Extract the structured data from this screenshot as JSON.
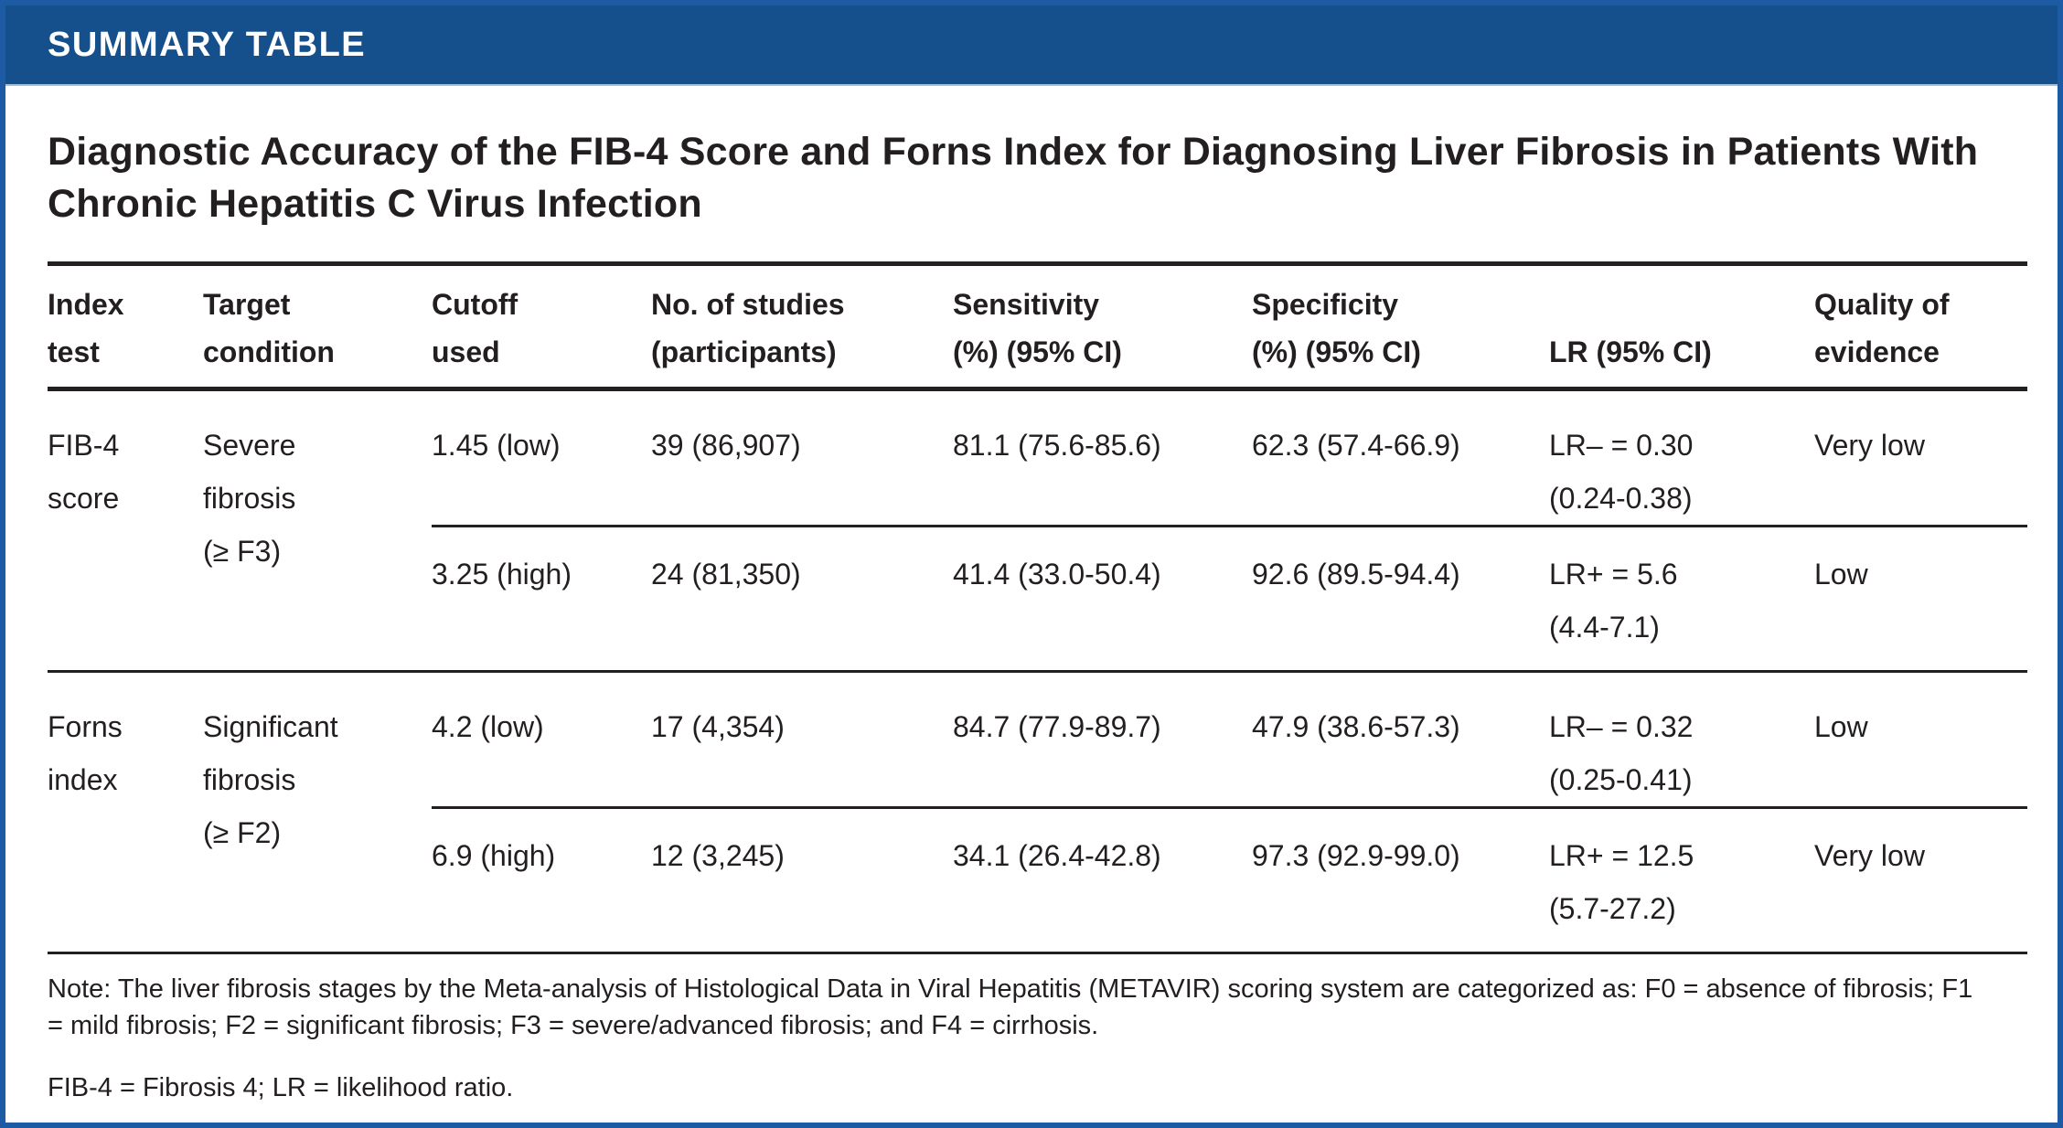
{
  "banner": {
    "label": "SUMMARY TABLE"
  },
  "title": "Diagnostic Accuracy of the FIB-4 Score and Forns Index for Diagnosing Liver Fibrosis in Patients With Chronic Hepatitis C Virus Infection",
  "colors": {
    "banner_blue": "#15508c",
    "border_blue": "#1d5ba4",
    "rule_black": "#231f20"
  },
  "table": {
    "headers": [
      "Index\ntest",
      "Target\ncondition",
      "Cutoff\nused",
      "No. of studies\n(participants)",
      "Sensitivity\n(%) (95% CI)",
      "Specificity\n(%) (95% CI)",
      "LR (95% CI)",
      "Quality of\nevidence"
    ],
    "groups": [
      {
        "index_test": "FIB-4\nscore",
        "target_condition": "Severe\nfibrosis\n(≥ F3)",
        "rows": [
          {
            "cutoff": "1.45 (low)",
            "studies": "39 (86,907)",
            "sensitivity": "81.1 (75.6-85.6)",
            "specificity": "62.3 (57.4-66.9)",
            "lr": "LR– = 0.30\n(0.24-0.38)",
            "quality": "Very low"
          },
          {
            "cutoff": "3.25 (high)",
            "studies": "24 (81,350)",
            "sensitivity": "41.4 (33.0-50.4)",
            "specificity": "92.6 (89.5-94.4)",
            "lr": "LR+ = 5.6\n(4.4-7.1)",
            "quality": "Low"
          }
        ]
      },
      {
        "index_test": "Forns\nindex",
        "target_condition": "Significant\nfibrosis\n(≥ F2)",
        "rows": [
          {
            "cutoff": "4.2 (low)",
            "studies": "17 (4,354)",
            "sensitivity": "84.7 (77.9-89.7)",
            "specificity": "47.9 (38.6-57.3)",
            "lr": "LR– = 0.32\n(0.25-0.41)",
            "quality": "Low"
          },
          {
            "cutoff": "6.9 (high)",
            "studies": "12 (3,245)",
            "sensitivity": "34.1 (26.4-42.8)",
            "specificity": "97.3 (92.9-99.0)",
            "lr": "LR+ = 12.5\n(5.7-27.2)",
            "quality": "Very low"
          }
        ]
      }
    ]
  },
  "notes": {
    "note": "Note: The liver fibrosis stages by the Meta-analysis of Histological Data in Viral Hepatitis (METAVIR) scoring system are categorized as: F0 = absence of fibrosis; F1 = mild fibrosis; F2 = significant fibrosis; F3 = severe/advanced fibrosis; and F4 = cirrhosis.",
    "abbreviations": "FIB-4 = Fibrosis 4; LR = likelihood ratio."
  }
}
